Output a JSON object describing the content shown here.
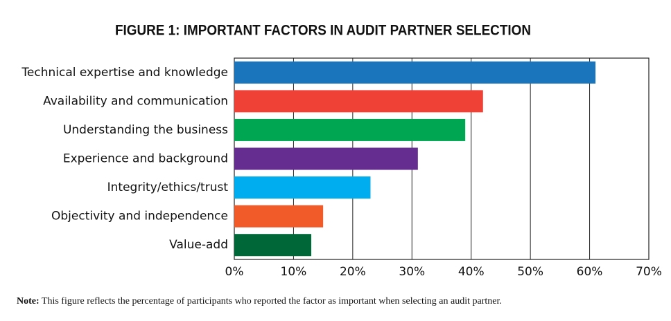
{
  "chart_data": {
    "type": "hbar",
    "title": "FIGURE 1: IMPORTANT FACTORS IN AUDIT PARTNER SELECTION",
    "categories": [
      "Technical expertise and knowledge",
      "Availability and communication",
      "Understanding the business",
      "Experience and background",
      "Integrity/ethics/trust",
      "Objectivity and independence",
      "Value-add"
    ],
    "values": [
      61,
      42,
      39,
      31,
      23,
      15,
      13
    ],
    "colors": [
      "#1a75bc",
      "#ef4136",
      "#00a651",
      "#662d91",
      "#00aeef",
      "#f15a29",
      "#006838"
    ],
    "xlim": [
      0,
      70
    ],
    "xticks": [
      {
        "value": 0,
        "label": "0%"
      },
      {
        "value": 10,
        "label": "10%"
      },
      {
        "value": 20,
        "label": "20%"
      },
      {
        "value": 30,
        "label": "30%"
      },
      {
        "value": 40,
        "label": "40%"
      },
      {
        "value": 50,
        "label": "50%"
      },
      {
        "value": 60,
        "label": "60%"
      },
      {
        "value": 70,
        "label": "70%"
      }
    ],
    "grid": true,
    "note": {
      "label": "Note:",
      "text": "This figure reflects the percentage of participants who reported the factor as important when selecting an audit partner."
    }
  }
}
